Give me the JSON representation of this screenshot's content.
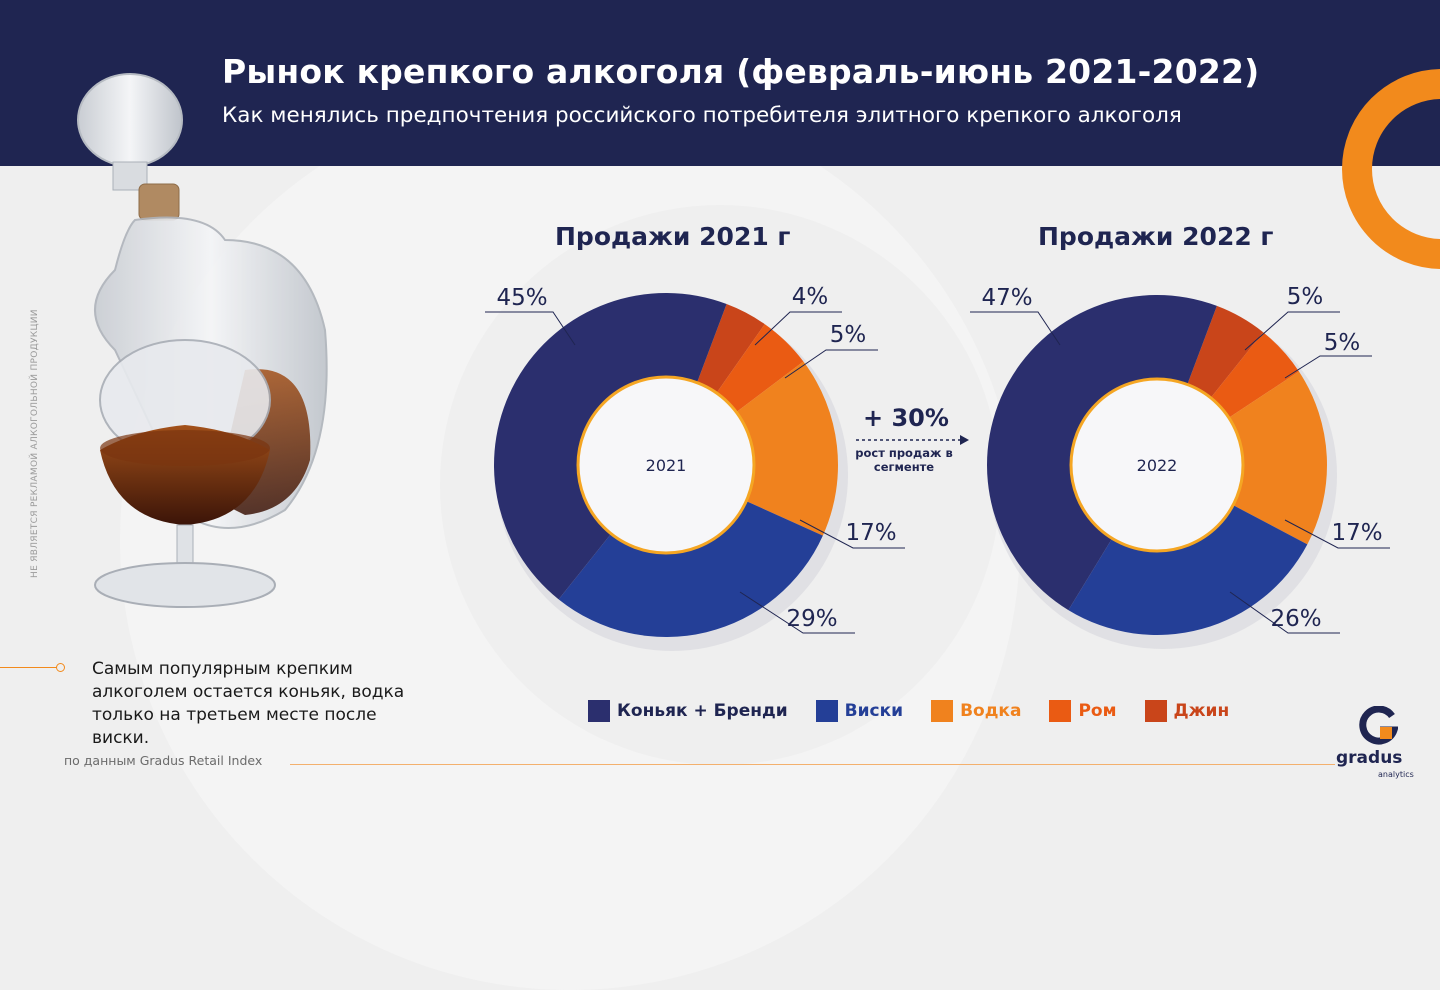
{
  "header": {
    "title": "Рынок крепкого алкоголя (февраль-июнь 2021-2022)",
    "subtitle": "Как менялись предпочтения российского потребителя элитного крепкого алкоголя"
  },
  "side_note": "НЕ ЯВЛЯЕТСЯ РЕКЛАМОЙ АЛКОГОЛЬНОЙ ПРОДУКЦИИ",
  "growth": {
    "value": "+ 30%",
    "caption": "рост продаж в сегменте"
  },
  "note": "Самым популярным крепким алкоголем остается коньяк, водка только на третьем месте после виски.",
  "source": "по данным Gradus Retail Index",
  "logo": {
    "word": "gradus",
    "sub": "analytics"
  },
  "colors": {
    "navy": "#1f2551",
    "accent_orange": "#f28a1c"
  },
  "chart_data": [
    {
      "type": "pie",
      "title": "Продажи 2021 г",
      "center_label": "2021",
      "categories": [
        "Коньяк + Бренди",
        "Виски",
        "Водка",
        "Ром",
        "Джин"
      ],
      "values": [
        45,
        29,
        17,
        5,
        4
      ],
      "value_labels": [
        "45%",
        "29%",
        "17%",
        "5%",
        "4%"
      ],
      "colors": [
        "#2b2f6e",
        "#243f97",
        "#f0821e",
        "#ea5b13",
        "#c9451a"
      ]
    },
    {
      "type": "pie",
      "title": "Продажи 2022 г",
      "center_label": "2022",
      "categories": [
        "Коньяк + Бренди",
        "Виски",
        "Водка",
        "Ром",
        "Джин"
      ],
      "values": [
        47,
        26,
        17,
        5,
        5
      ],
      "value_labels": [
        "47%",
        "26%",
        "17%",
        "5%",
        "5%"
      ],
      "colors": [
        "#2b2f6e",
        "#243f97",
        "#f0821e",
        "#ea5b13",
        "#c9451a"
      ]
    }
  ],
  "legend": [
    {
      "label": "Коньяк + Бренди",
      "color": "#2b2f6e",
      "text_color": "#1f2551"
    },
    {
      "label": "Виски",
      "color": "#243f97",
      "text_color": "#243f97"
    },
    {
      "label": "Водка",
      "color": "#f0821e",
      "text_color": "#f0821e"
    },
    {
      "label": "Ром",
      "color": "#ea5b13",
      "text_color": "#ea5b13"
    },
    {
      "label": "Джин",
      "color": "#c9451a",
      "text_color": "#c9451a"
    }
  ]
}
